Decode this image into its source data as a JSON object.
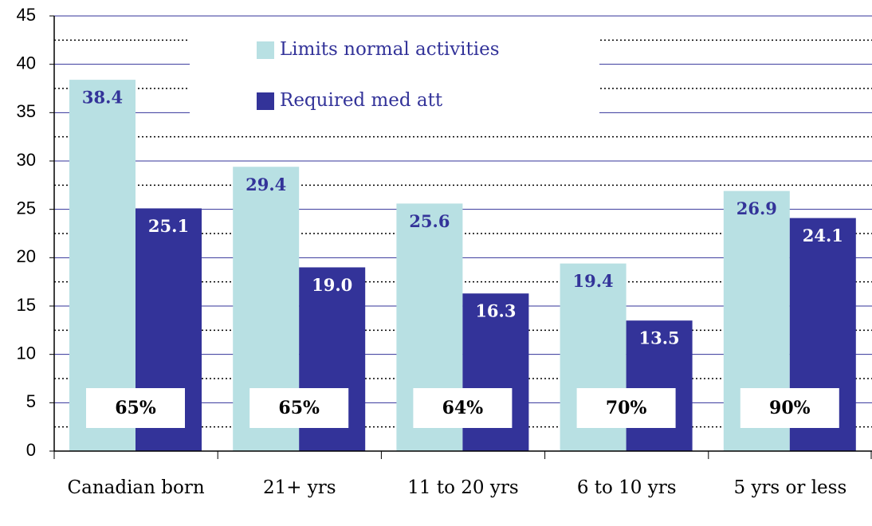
{
  "chart_data": {
    "type": "bar",
    "categories": [
      "Canadian born",
      "21+ yrs",
      "11 to 20 yrs",
      "6 to 10 yrs",
      "5 yrs or less"
    ],
    "series": [
      {
        "name": "Limits normal activities",
        "color": "#b8e0e3",
        "values": [
          38.4,
          29.4,
          25.6,
          19.4,
          26.9
        ],
        "value_labels": [
          "38.4",
          "29.4",
          "25.6",
          "19.4",
          "26.9"
        ]
      },
      {
        "name": "Required med att",
        "color": "#333399",
        "values": [
          25.1,
          19.0,
          16.3,
          13.5,
          24.1
        ],
        "value_labels": [
          "25.1",
          "19.0",
          "16.3",
          "13.5",
          "24.1"
        ]
      }
    ],
    "annotations": [
      "65%",
      "65%",
      "64%",
      "70%",
      "90%"
    ],
    "ylim": [
      0,
      45
    ],
    "yticks": [
      0,
      5,
      10,
      15,
      20,
      25,
      30,
      35,
      40,
      45
    ],
    "grid": true,
    "legend": "top"
  }
}
